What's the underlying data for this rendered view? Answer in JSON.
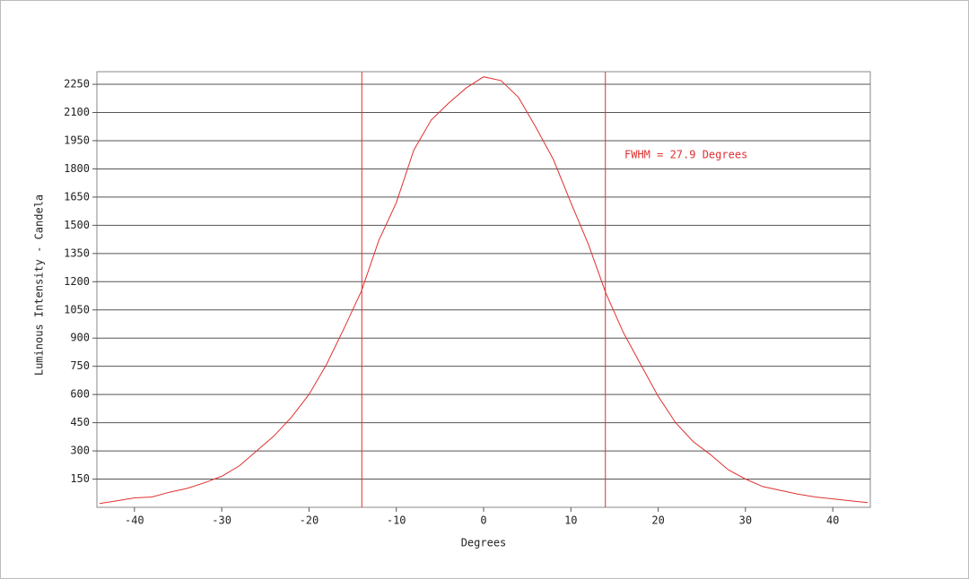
{
  "chart_data": {
    "type": "line",
    "xlabel": "Degrees",
    "ylabel": "Luminous Intensity - Candela",
    "annotation": "FWHM = 27.9 Degrees",
    "vlines": [
      -13.95,
      13.95
    ],
    "color": "#e03030",
    "x": [
      -44,
      -42,
      -40,
      -38,
      -36,
      -34,
      -32,
      -30,
      -28,
      -26,
      -24,
      -22,
      -20,
      -18,
      -16,
      -14,
      -12,
      -10,
      -8,
      -6,
      -4,
      -2,
      0,
      2,
      4,
      6,
      8,
      10,
      12,
      14,
      16,
      18,
      20,
      22,
      24,
      26,
      28,
      30,
      32,
      34,
      36,
      38,
      40,
      42,
      44
    ],
    "values": [
      20,
      35,
      50,
      55,
      80,
      100,
      130,
      165,
      220,
      300,
      380,
      480,
      600,
      760,
      950,
      1150,
      1420,
      1620,
      1900,
      2060,
      2150,
      2230,
      2290,
      2270,
      2180,
      2020,
      1850,
      1620,
      1400,
      1140,
      930,
      760,
      590,
      450,
      350,
      280,
      200,
      150,
      110,
      90,
      70,
      55,
      45,
      35,
      25
    ],
    "xlim": [
      -44.3,
      44.3
    ],
    "ylim": [
      0,
      2317
    ],
    "xticks": [
      -40,
      -30,
      -20,
      -10,
      0,
      10,
      20,
      30,
      40
    ],
    "yticks": [
      150,
      300,
      450,
      600,
      750,
      900,
      1050,
      1200,
      1350,
      1500,
      1650,
      1800,
      1950,
      2100,
      2250
    ],
    "grid": true
  }
}
